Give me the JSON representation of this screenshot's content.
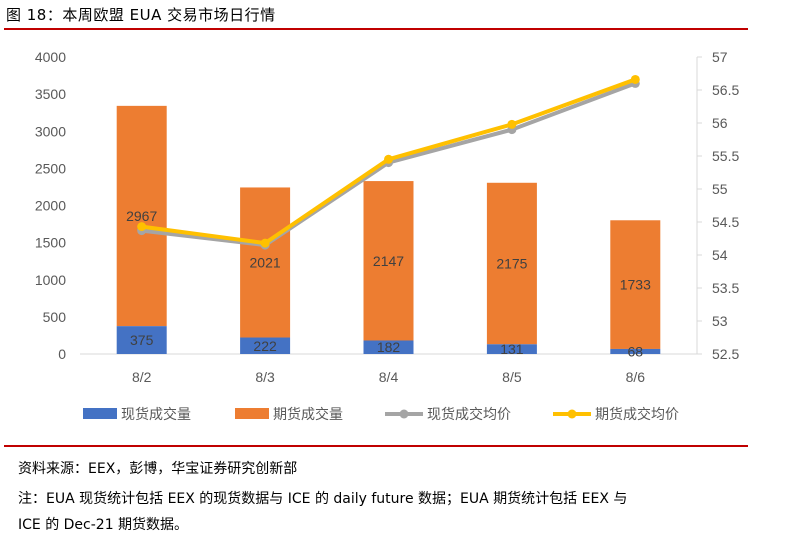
{
  "figure_title": "图 18：本周欧盟 EUA 交易市场日行情",
  "source": "资料来源：EEX，彭博，华宝证券研究创新部",
  "note_line1": "注：EUA 现货统计包括 EEX 的现货数据与 ICE 的 daily future 数据；EUA 期货统计包括 EEX 与",
  "note_line2": "ICE 的 Dec-21 期货数据。",
  "colors": {
    "spot_volume": "#4472c4",
    "futures_volume": "#ed7d31",
    "spot_price": "#a5a5a5",
    "futures_price": "#ffc000",
    "rule": "#c00000"
  },
  "chart_data": {
    "type": "bar",
    "stacked": true,
    "categories": [
      "8/2",
      "8/3",
      "8/4",
      "8/5",
      "8/6"
    ],
    "series": [
      {
        "name": "现货成交量",
        "type": "bar",
        "axis": "left",
        "values": [
          375,
          222,
          182,
          131,
          68
        ]
      },
      {
        "name": "期货成交量",
        "type": "bar",
        "axis": "left",
        "values": [
          2967,
          2021,
          2147,
          2175,
          1733
        ]
      },
      {
        "name": "现货成交均价",
        "type": "line",
        "axis": "right",
        "values": [
          54.37,
          54.15,
          55.4,
          55.9,
          56.6
        ]
      },
      {
        "name": "期货成交均价",
        "type": "line",
        "axis": "right",
        "values": [
          54.43,
          54.18,
          55.45,
          55.98,
          56.66
        ]
      }
    ],
    "ylim_left": [
      0,
      4000
    ],
    "yticks_left": [
      "0",
      "500",
      "1000",
      "1500",
      "2000",
      "2500",
      "3000",
      "3500",
      "4000"
    ],
    "ylim_right": [
      52.5,
      57
    ],
    "yticks_right": [
      "52.5",
      "53",
      "53.5",
      "54",
      "54.5",
      "55",
      "55.5",
      "56",
      "56.5",
      "57"
    ],
    "data_labels": {
      "spot": [
        "375",
        "222",
        "182",
        "131",
        "68"
      ],
      "futures": [
        "2967",
        "2021",
        "2147",
        "2175",
        "1733"
      ]
    },
    "legend_position": "bottom",
    "grid": false
  }
}
